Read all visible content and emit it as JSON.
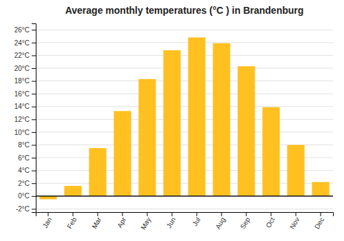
{
  "chart_data": {
    "type": "bar",
    "title": "Average monthly temperatures (°C ) in Brandenburg",
    "categories": [
      "Jan",
      "Feb",
      "Mar",
      "Apr",
      "May",
      "Jun",
      "Jul",
      "Aug",
      "Sep",
      "Oct",
      "Nov",
      "Dec"
    ],
    "values": [
      -0.5,
      1.6,
      7.5,
      13.3,
      18.3,
      22.8,
      24.8,
      23.9,
      20.3,
      13.9,
      8.0,
      2.2
    ],
    "color": "#FFC020",
    "ylim": [
      -2.5,
      27
    ],
    "yticks": [
      {
        "value": -2,
        "label": "-2°C"
      },
      {
        "value": 0,
        "label": "0°C"
      },
      {
        "value": 2,
        "label": "2°C"
      },
      {
        "value": 4,
        "label": "4°C"
      },
      {
        "value": 6,
        "label": "6°C"
      },
      {
        "value": 8,
        "label": "8°C"
      },
      {
        "value": 10,
        "label": "10°C"
      },
      {
        "value": 12,
        "label": "12°C"
      },
      {
        "value": 14,
        "label": "14°C"
      },
      {
        "value": 16,
        "label": "16°C"
      },
      {
        "value": 18,
        "label": "18°C"
      },
      {
        "value": 20,
        "label": "20°C"
      },
      {
        "value": 22,
        "label": "22°C"
      },
      {
        "value": 24,
        "label": "24°C"
      },
      {
        "value": 26,
        "label": "26°C"
      }
    ],
    "grid": true
  }
}
